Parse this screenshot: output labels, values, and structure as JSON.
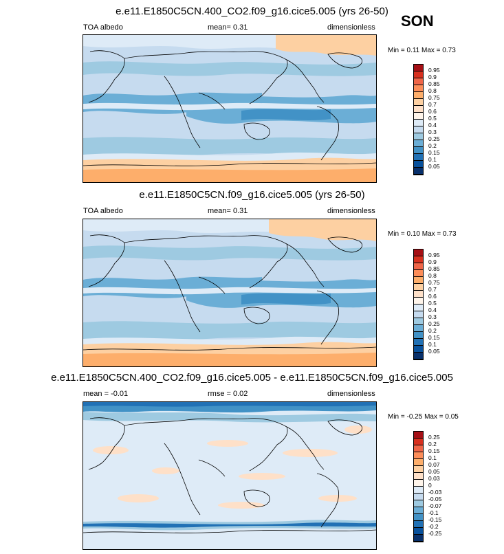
{
  "season": "SON",
  "panels": [
    {
      "title": "e.e11.E1850C5CN.400_CO2.f09_g16.cice5.005 (yrs 26-50)",
      "left": "TOA albedo",
      "center": "mean=  0.31",
      "right": "dimensionless",
      "minmax": "Min =  0.11 Max =  0.73",
      "labels": [
        "0.95",
        "0.9",
        "0.85",
        "0.8",
        "0.75",
        "0.7",
        "0.6",
        "0.5",
        "0.4",
        "0.3",
        "0.25",
        "0.2",
        "0.15",
        "0.1",
        "0.05"
      ],
      "colors": [
        "#a50f15",
        "#d7301f",
        "#ef6548",
        "#fc8d59",
        "#fdae6b",
        "#fdd0a2",
        "#fee0c8",
        "#fff5eb",
        "#deebf7",
        "#c6dbef",
        "#9ecae1",
        "#6baed6",
        "#4292c6",
        "#2171b5",
        "#08519c",
        "#08306b"
      ]
    },
    {
      "title": "e.e11.E1850C5CN.f09_g16.cice5.005 (yrs 26-50)",
      "left": "TOA albedo",
      "center": "mean=  0.31",
      "right": "dimensionless",
      "minmax": "Min =  0.10 Max =  0.73",
      "labels": [
        "0.95",
        "0.9",
        "0.85",
        "0.8",
        "0.75",
        "0.7",
        "0.6",
        "0.5",
        "0.4",
        "0.3",
        "0.25",
        "0.2",
        "0.15",
        "0.1",
        "0.05"
      ],
      "colors": [
        "#a50f15",
        "#d7301f",
        "#ef6548",
        "#fc8d59",
        "#fdae6b",
        "#fdd0a2",
        "#fee0c8",
        "#fff5eb",
        "#deebf7",
        "#c6dbef",
        "#9ecae1",
        "#6baed6",
        "#4292c6",
        "#2171b5",
        "#08519c",
        "#08306b"
      ]
    },
    {
      "title": "e.e11.E1850C5CN.400_CO2.f09_g16.cice5.005 - e.e11.E1850C5CN.f09_g16.cice5.005",
      "left": "mean =  -0.01",
      "center": "rmse =  0.02",
      "right": "dimensionless",
      "minmax": "Min =  -0.25 Max =  0.05",
      "labels": [
        "0.25",
        "0.2",
        "0.15",
        "0.1",
        "0.07",
        "0.05",
        "0.03",
        "0",
        "-0.03",
        "-0.05",
        "-0.07",
        "-0.1",
        "-0.15",
        "-0.2",
        "-0.25"
      ],
      "colors": [
        "#a50f15",
        "#d7301f",
        "#ef6548",
        "#fc8d59",
        "#fdae6b",
        "#fdd0a2",
        "#fee0c8",
        "#fff5eb",
        "#deebf7",
        "#c6dbef",
        "#9ecae1",
        "#6baed6",
        "#4292c6",
        "#2171b5",
        "#08519c",
        "#08306b"
      ]
    }
  ]
}
